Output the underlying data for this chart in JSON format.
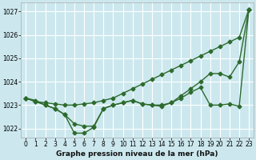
{
  "xlabel": "Graphe pression niveau de la mer (hPa)",
  "bg_color": "#cce8ee",
  "grid_color": "#ffffff",
  "line_color": "#2d6a2d",
  "x_values": [
    0,
    1,
    2,
    3,
    4,
    5,
    6,
    7,
    8,
    9,
    10,
    11,
    12,
    13,
    14,
    15,
    16,
    17,
    18,
    19,
    20,
    21,
    22,
    23
  ],
  "ylim": [
    1021.6,
    1027.4
  ],
  "yticks": [
    1022,
    1023,
    1024,
    1025,
    1026,
    1027
  ],
  "series_dotted": [
    1023.3,
    1023.2,
    1023.0,
    1022.85,
    1022.6,
    1021.8,
    1021.8,
    1022.05,
    1022.85,
    1023.0,
    1023.1,
    1023.2,
    1023.05,
    1023.0,
    1023.0,
    1023.1,
    1023.3,
    1023.55,
    1023.75,
    1023.0,
    1023.0,
    1023.05,
    1022.95,
    1027.1
  ],
  "series_upper": [
    1023.3,
    1023.15,
    1023.1,
    1023.05,
    1023.0,
    1023.0,
    1023.05,
    1023.1,
    1023.2,
    1023.3,
    1023.5,
    1023.7,
    1023.9,
    1024.1,
    1024.3,
    1024.5,
    1024.7,
    1024.9,
    1025.1,
    1025.3,
    1025.5,
    1025.7,
    1025.9,
    1027.1
  ],
  "series_mid": [
    1023.3,
    1023.15,
    1023.0,
    1022.85,
    1022.6,
    1022.2,
    1022.1,
    1022.1,
    1022.85,
    1023.0,
    1023.1,
    1023.2,
    1023.05,
    1023.0,
    1022.95,
    1023.1,
    1023.4,
    1023.7,
    1024.0,
    1024.35,
    1024.35,
    1024.2,
    1024.85,
    1027.1
  ],
  "marker": "D",
  "marker_size": 2.5,
  "line_width": 1.0,
  "tick_fontsize": 5.5,
  "xlabel_fontsize": 6.5,
  "spine_color": "#aaaaaa"
}
